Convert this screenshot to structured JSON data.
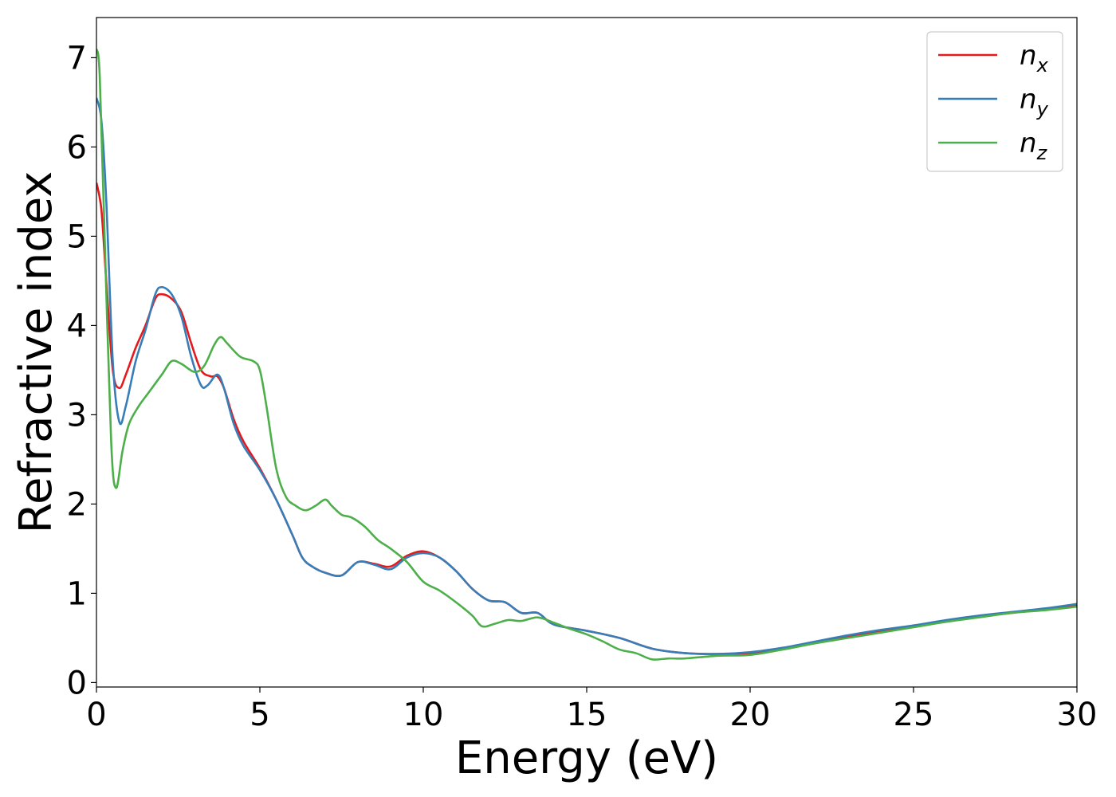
{
  "chart_data": {
    "type": "line",
    "title": "",
    "xlabel": "Energy (eV)",
    "ylabel": "Refractive index",
    "xlim": [
      0,
      30
    ],
    "ylim": [
      -0.05,
      7.45
    ],
    "xticks": [
      0,
      5,
      10,
      15,
      20,
      25,
      30
    ],
    "yticks": [
      0,
      1,
      2,
      3,
      4,
      5,
      6,
      7
    ],
    "grid": false,
    "legend_position": "top-right",
    "series": [
      {
        "name": "n",
        "subscript": "x",
        "color": "#e41a1c",
        "points": [
          [
            0,
            5.6
          ],
          [
            0.15,
            5.3
          ],
          [
            0.3,
            4.5
          ],
          [
            0.5,
            3.5
          ],
          [
            0.7,
            3.3
          ],
          [
            0.9,
            3.45
          ],
          [
            1.2,
            3.75
          ],
          [
            1.5,
            4.0
          ],
          [
            1.8,
            4.3
          ],
          [
            2.0,
            4.35
          ],
          [
            2.3,
            4.3
          ],
          [
            2.6,
            4.15
          ],
          [
            2.9,
            3.8
          ],
          [
            3.2,
            3.5
          ],
          [
            3.5,
            3.43
          ],
          [
            3.7,
            3.43
          ],
          [
            3.9,
            3.3
          ],
          [
            4.2,
            2.95
          ],
          [
            4.5,
            2.7
          ],
          [
            5.0,
            2.4
          ],
          [
            5.5,
            2.05
          ],
          [
            6.0,
            1.65
          ],
          [
            6.3,
            1.4
          ],
          [
            6.6,
            1.3
          ],
          [
            7.0,
            1.23
          ],
          [
            7.5,
            1.2
          ],
          [
            8.0,
            1.35
          ],
          [
            8.5,
            1.33
          ],
          [
            9.0,
            1.3
          ],
          [
            9.5,
            1.42
          ],
          [
            10.0,
            1.47
          ],
          [
            10.5,
            1.4
          ],
          [
            11.0,
            1.25
          ],
          [
            11.5,
            1.05
          ],
          [
            12.0,
            0.92
          ],
          [
            12.5,
            0.9
          ],
          [
            13.0,
            0.78
          ],
          [
            13.5,
            0.78
          ],
          [
            14.0,
            0.65
          ],
          [
            15.0,
            0.58
          ],
          [
            16.0,
            0.5
          ],
          [
            17.0,
            0.38
          ],
          [
            18.0,
            0.33
          ],
          [
            19.0,
            0.32
          ],
          [
            20.0,
            0.33
          ],
          [
            21.0,
            0.38
          ],
          [
            22.0,
            0.45
          ],
          [
            23.0,
            0.52
          ],
          [
            24.0,
            0.58
          ],
          [
            25.0,
            0.63
          ],
          [
            26.0,
            0.69
          ],
          [
            27.0,
            0.74
          ],
          [
            28.0,
            0.78
          ],
          [
            29.0,
            0.82
          ],
          [
            30.0,
            0.87
          ]
        ]
      },
      {
        "name": "n",
        "subscript": "y",
        "color": "#377eb8",
        "points": [
          [
            0,
            6.55
          ],
          [
            0.15,
            6.3
          ],
          [
            0.3,
            5.4
          ],
          [
            0.5,
            3.6
          ],
          [
            0.7,
            2.92
          ],
          [
            0.9,
            3.1
          ],
          [
            1.2,
            3.6
          ],
          [
            1.5,
            3.95
          ],
          [
            1.8,
            4.35
          ],
          [
            2.0,
            4.43
          ],
          [
            2.3,
            4.35
          ],
          [
            2.6,
            4.1
          ],
          [
            2.9,
            3.65
          ],
          [
            3.2,
            3.33
          ],
          [
            3.4,
            3.33
          ],
          [
            3.7,
            3.45
          ],
          [
            3.9,
            3.3
          ],
          [
            4.2,
            2.9
          ],
          [
            4.5,
            2.65
          ],
          [
            5.0,
            2.38
          ],
          [
            5.5,
            2.05
          ],
          [
            6.0,
            1.65
          ],
          [
            6.3,
            1.4
          ],
          [
            6.6,
            1.3
          ],
          [
            7.0,
            1.23
          ],
          [
            7.5,
            1.2
          ],
          [
            8.0,
            1.35
          ],
          [
            8.5,
            1.32
          ],
          [
            9.0,
            1.27
          ],
          [
            9.5,
            1.4
          ],
          [
            10.0,
            1.45
          ],
          [
            10.5,
            1.4
          ],
          [
            11.0,
            1.25
          ],
          [
            11.5,
            1.05
          ],
          [
            12.0,
            0.92
          ],
          [
            12.5,
            0.9
          ],
          [
            13.0,
            0.78
          ],
          [
            13.5,
            0.78
          ],
          [
            14.0,
            0.65
          ],
          [
            15.0,
            0.58
          ],
          [
            16.0,
            0.5
          ],
          [
            17.0,
            0.38
          ],
          [
            18.0,
            0.33
          ],
          [
            19.0,
            0.32
          ],
          [
            20.0,
            0.34
          ],
          [
            21.0,
            0.39
          ],
          [
            22.0,
            0.46
          ],
          [
            23.0,
            0.53
          ],
          [
            24.0,
            0.59
          ],
          [
            25.0,
            0.64
          ],
          [
            26.0,
            0.7
          ],
          [
            27.0,
            0.75
          ],
          [
            28.0,
            0.79
          ],
          [
            29.0,
            0.83
          ],
          [
            30.0,
            0.88
          ]
        ]
      },
      {
        "name": "n",
        "subscript": "z",
        "color": "#4daf4a",
        "points": [
          [
            0,
            7.1
          ],
          [
            0.1,
            6.8
          ],
          [
            0.25,
            5.0
          ],
          [
            0.45,
            2.7
          ],
          [
            0.6,
            2.18
          ],
          [
            0.8,
            2.6
          ],
          [
            1.0,
            2.9
          ],
          [
            1.3,
            3.1
          ],
          [
            1.6,
            3.25
          ],
          [
            2.0,
            3.45
          ],
          [
            2.3,
            3.6
          ],
          [
            2.6,
            3.57
          ],
          [
            3.0,
            3.48
          ],
          [
            3.3,
            3.55
          ],
          [
            3.6,
            3.78
          ],
          [
            3.8,
            3.87
          ],
          [
            4.0,
            3.8
          ],
          [
            4.4,
            3.65
          ],
          [
            4.8,
            3.6
          ],
          [
            5.0,
            3.5
          ],
          [
            5.2,
            3.1
          ],
          [
            5.5,
            2.4
          ],
          [
            5.8,
            2.08
          ],
          [
            6.1,
            1.98
          ],
          [
            6.4,
            1.93
          ],
          [
            6.7,
            1.98
          ],
          [
            7.0,
            2.05
          ],
          [
            7.2,
            1.98
          ],
          [
            7.5,
            1.88
          ],
          [
            7.8,
            1.85
          ],
          [
            8.2,
            1.75
          ],
          [
            8.6,
            1.6
          ],
          [
            9.0,
            1.5
          ],
          [
            9.5,
            1.35
          ],
          [
            10.0,
            1.13
          ],
          [
            10.5,
            1.03
          ],
          [
            11.0,
            0.9
          ],
          [
            11.5,
            0.75
          ],
          [
            11.8,
            0.63
          ],
          [
            12.2,
            0.66
          ],
          [
            12.6,
            0.7
          ],
          [
            13.0,
            0.69
          ],
          [
            13.5,
            0.73
          ],
          [
            14.0,
            0.67
          ],
          [
            14.5,
            0.6
          ],
          [
            15.0,
            0.54
          ],
          [
            15.5,
            0.46
          ],
          [
            16.0,
            0.37
          ],
          [
            16.5,
            0.33
          ],
          [
            17.0,
            0.26
          ],
          [
            17.5,
            0.27
          ],
          [
            18.0,
            0.27
          ],
          [
            19.0,
            0.3
          ],
          [
            20.0,
            0.31
          ],
          [
            21.0,
            0.37
          ],
          [
            22.0,
            0.44
          ],
          [
            23.0,
            0.5
          ],
          [
            24.0,
            0.56
          ],
          [
            25.0,
            0.62
          ],
          [
            26.0,
            0.68
          ],
          [
            27.0,
            0.73
          ],
          [
            28.0,
            0.78
          ],
          [
            29.0,
            0.81
          ],
          [
            30.0,
            0.85
          ]
        ]
      }
    ]
  }
}
